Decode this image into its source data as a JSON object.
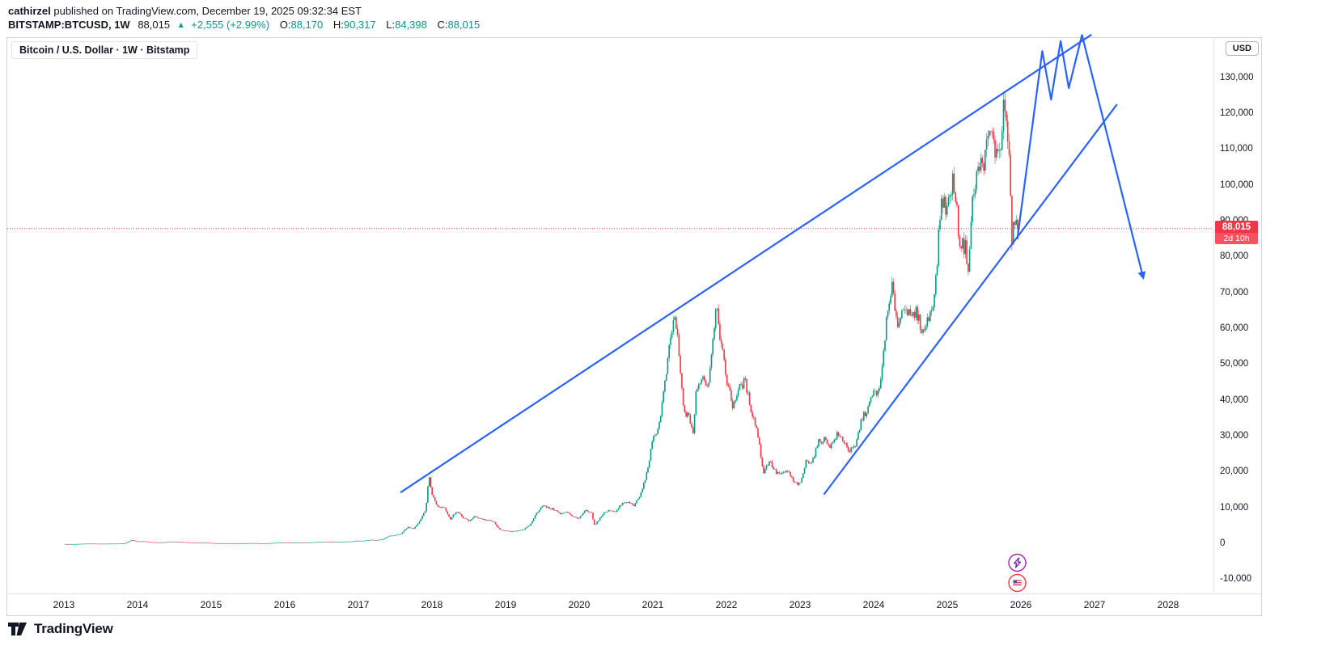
{
  "page": {
    "publish": {
      "author": "cathirzel",
      "text": " published on TradingView.com, December 19, 2025 09:32:34 EST"
    },
    "symbol_bar": {
      "symbol": "BITSTAMP:BTCUSD, 1W",
      "last": "88,015",
      "arrow": "▲",
      "change": "+2,555 (+2.99%)",
      "open_label": "O:",
      "open": "88,170",
      "high_label": "H:",
      "high": "90,317",
      "low_label": "L:",
      "low": "84,398",
      "close_label": "C:",
      "close": "88,015"
    },
    "footer_brand": "TradingView"
  },
  "chart": {
    "legend": "Bitcoin / U.S. Dollar · 1W · Bitstamp",
    "currency": "USD",
    "price_label": "88,015",
    "countdown": "2d 10h"
  },
  "chart_data": {
    "type": "candlestick",
    "title": "Bitcoin / U.S. Dollar · 1W · Bitstamp",
    "symbol": "BTCUSD",
    "exchange": "Bitstamp",
    "timeframe": "1W",
    "x_ticks": [
      "2013",
      "2014",
      "2015",
      "2016",
      "2017",
      "2018",
      "2019",
      "2020",
      "2021",
      "2022",
      "2023",
      "2024",
      "2025",
      "2026",
      "2027",
      "2028"
    ],
    "y_ticks": [
      130000,
      120000,
      110000,
      100000,
      90000,
      80000,
      70000,
      60000,
      50000,
      40000,
      30000,
      20000,
      10000,
      0,
      -10000
    ],
    "xlim": [
      2012.23,
      2028.63
    ],
    "ylim": [
      -13530,
      141160
    ],
    "grid": false,
    "t_start": 2013.0,
    "t_end": 2025.97,
    "last_price": 88015,
    "colors": {
      "up": "#089981",
      "down": "#f23645",
      "drawing": "#2962ff",
      "last": "#f23645"
    },
    "anchors": [
      [
        2013.083,
        20
      ],
      [
        2013.167,
        33
      ],
      [
        2013.25,
        93
      ],
      [
        2013.333,
        139
      ],
      [
        2013.417,
        129
      ],
      [
        2013.5,
        97
      ],
      [
        2013.583,
        106
      ],
      [
        2013.667,
        135
      ],
      [
        2013.75,
        141
      ],
      [
        2013.833,
        204
      ],
      [
        2013.917,
        1120
      ],
      [
        2014.0,
        732
      ],
      [
        2014.083,
        806
      ],
      [
        2014.167,
        550
      ],
      [
        2014.25,
        454
      ],
      [
        2014.333,
        446
      ],
      [
        2014.417,
        627
      ],
      [
        2014.5,
        635
      ],
      [
        2014.583,
        583
      ],
      [
        2014.667,
        477
      ],
      [
        2014.75,
        387
      ],
      [
        2014.833,
        338
      ],
      [
        2014.917,
        376
      ],
      [
        2015.0,
        320
      ],
      [
        2015.083,
        217
      ],
      [
        2015.167,
        254
      ],
      [
        2015.25,
        244
      ],
      [
        2015.333,
        236
      ],
      [
        2015.417,
        230
      ],
      [
        2015.5,
        263
      ],
      [
        2015.583,
        284
      ],
      [
        2015.667,
        230
      ],
      [
        2015.75,
        236
      ],
      [
        2015.833,
        314
      ],
      [
        2015.917,
        377
      ],
      [
        2016.0,
        430
      ],
      [
        2016.083,
        368
      ],
      [
        2016.167,
        437
      ],
      [
        2016.25,
        416
      ],
      [
        2016.333,
        448
      ],
      [
        2016.417,
        531
      ],
      [
        2016.5,
        673
      ],
      [
        2016.583,
        624
      ],
      [
        2016.667,
        575
      ],
      [
        2016.75,
        610
      ],
      [
        2016.833,
        701
      ],
      [
        2016.917,
        745
      ],
      [
        2017.0,
        963
      ],
      [
        2017.083,
        970
      ],
      [
        2017.167,
        1180
      ],
      [
        2017.25,
        1080
      ],
      [
        2017.333,
        1350
      ],
      [
        2017.417,
        2300
      ],
      [
        2017.5,
        2480
      ],
      [
        2017.583,
        2875
      ],
      [
        2017.667,
        4703
      ],
      [
        2017.75,
        4338
      ],
      [
        2017.833,
        6468
      ],
      [
        2017.917,
        9916
      ],
      [
        2017.96,
        19000
      ],
      [
        2018.0,
        13850
      ],
      [
        2018.083,
        10221
      ],
      [
        2018.167,
        10397
      ],
      [
        2018.25,
        6938
      ],
      [
        2018.333,
        9240
      ],
      [
        2018.417,
        7494
      ],
      [
        2018.5,
        6404
      ],
      [
        2018.583,
        7735
      ],
      [
        2018.667,
        7033
      ],
      [
        2018.75,
        6625
      ],
      [
        2018.833,
        6317
      ],
      [
        2018.917,
        4017
      ],
      [
        2019.0,
        3742
      ],
      [
        2019.083,
        3437
      ],
      [
        2019.167,
        3816
      ],
      [
        2019.25,
        4105
      ],
      [
        2019.333,
        5320
      ],
      [
        2019.417,
        8555
      ],
      [
        2019.5,
        10818
      ],
      [
        2019.583,
        10082
      ],
      [
        2019.667,
        9594
      ],
      [
        2019.75,
        8293
      ],
      [
        2019.833,
        9152
      ],
      [
        2019.917,
        7556
      ],
      [
        2020.0,
        7193
      ],
      [
        2020.083,
        9350
      ],
      [
        2020.167,
        8543
      ],
      [
        2020.21,
        5000
      ],
      [
        2020.25,
        6438
      ],
      [
        2020.333,
        8629
      ],
      [
        2020.417,
        9454
      ],
      [
        2020.5,
        9137
      ],
      [
        2020.583,
        11351
      ],
      [
        2020.667,
        11655
      ],
      [
        2020.75,
        10776
      ],
      [
        2020.833,
        13797
      ],
      [
        2020.917,
        19698
      ],
      [
        2021.0,
        28990
      ],
      [
        2021.083,
        33108
      ],
      [
        2021.167,
        45164
      ],
      [
        2021.25,
        58787
      ],
      [
        2021.3,
        63500
      ],
      [
        2021.333,
        57720
      ],
      [
        2021.417,
        37298
      ],
      [
        2021.5,
        35026
      ],
      [
        2021.55,
        30800
      ],
      [
        2021.583,
        41553
      ],
      [
        2021.667,
        47130
      ],
      [
        2021.75,
        43824
      ],
      [
        2021.833,
        61320
      ],
      [
        2021.87,
        67800
      ],
      [
        2021.917,
        56987
      ],
      [
        2022.0,
        46211
      ],
      [
        2022.083,
        38491
      ],
      [
        2022.167,
        43193
      ],
      [
        2022.25,
        45539
      ],
      [
        2022.333,
        37644
      ],
      [
        2022.417,
        31801
      ],
      [
        2022.5,
        19926
      ],
      [
        2022.583,
        23293
      ],
      [
        2022.667,
        20050
      ],
      [
        2022.75,
        19424
      ],
      [
        2022.833,
        20490
      ],
      [
        2022.917,
        17163
      ],
      [
        2023.0,
        16540
      ],
      [
        2023.083,
        23130
      ],
      [
        2023.167,
        23139
      ],
      [
        2023.25,
        28478
      ],
      [
        2023.333,
        29233
      ],
      [
        2023.417,
        27216
      ],
      [
        2023.5,
        30472
      ],
      [
        2023.583,
        29230
      ],
      [
        2023.667,
        25932
      ],
      [
        2023.75,
        26962
      ],
      [
        2023.833,
        34657
      ],
      [
        2023.917,
        37718
      ],
      [
        2024.0,
        42265
      ],
      [
        2024.083,
        42580
      ],
      [
        2024.167,
        61169
      ],
      [
        2024.25,
        71280
      ],
      [
        2024.333,
        60637
      ],
      [
        2024.417,
        67491
      ],
      [
        2024.5,
        62668
      ],
      [
        2024.583,
        64619
      ],
      [
        2024.667,
        58970
      ],
      [
        2024.75,
        63330
      ],
      [
        2024.833,
        70215
      ],
      [
        2024.917,
        96449
      ],
      [
        2025.0,
        93429
      ],
      [
        2025.083,
        102405
      ],
      [
        2025.167,
        84373
      ],
      [
        2025.25,
        82550
      ],
      [
        2025.29,
        76500
      ],
      [
        2025.333,
        94208
      ],
      [
        2025.417,
        104598
      ],
      [
        2025.5,
        107132
      ],
      [
        2025.583,
        115758
      ],
      [
        2025.667,
        108237
      ],
      [
        2025.75,
        114056
      ],
      [
        2025.77,
        125500
      ],
      [
        2025.833,
        109900
      ],
      [
        2025.88,
        84500
      ],
      [
        2025.917,
        91000
      ],
      [
        2025.97,
        88015
      ]
    ],
    "drawings": {
      "trendlines": [
        {
          "name": "upper-trendline",
          "points": [
            [
              2017.58,
              14500
            ],
            [
              2026.95,
              142000
            ]
          ]
        },
        {
          "name": "lower-trendline",
          "points": [
            [
              2023.33,
              14000
            ],
            [
              2027.3,
              122500
            ]
          ]
        }
      ],
      "projection": {
        "name": "forecast-zigzag-arrow",
        "points": [
          [
            2025.95,
            85000
          ],
          [
            2026.29,
            137500
          ],
          [
            2026.41,
            124000
          ],
          [
            2026.54,
            140300
          ],
          [
            2026.65,
            127200
          ],
          [
            2026.83,
            142000
          ],
          [
            2027.66,
            74400
          ]
        ]
      }
    },
    "events": [
      {
        "icon": "lightning",
        "color": "#9c27b0",
        "t": 2025.95
      },
      {
        "icon": "us-flag",
        "color": "#f23645",
        "t": 2025.95
      }
    ]
  }
}
